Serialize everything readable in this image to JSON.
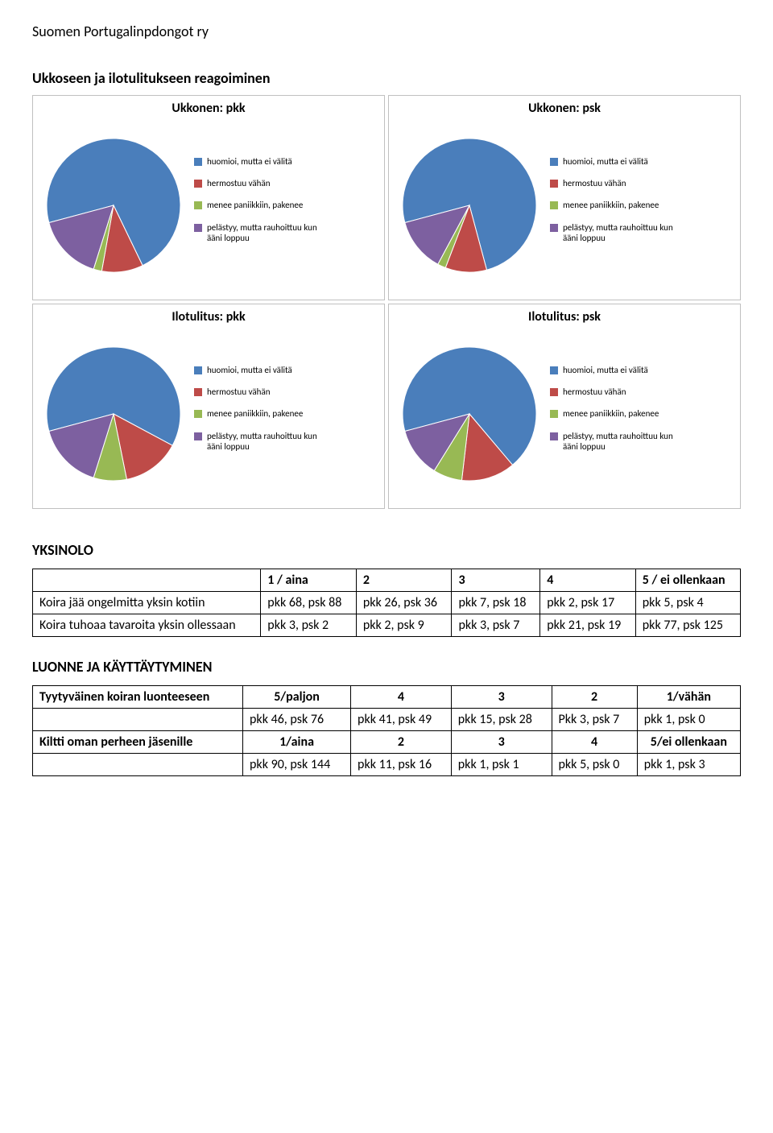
{
  "org_name": "Suomen Portugalinpdongot ry",
  "heading_main": "Ukkoseen ja ilotulitukseen reagoiminen",
  "legend_labels": [
    "huomioi, mutta ei välitä",
    "hermostuu vähän",
    "menee paniikkiin, pakenee",
    "pelästyy, mutta rauhoittuu kun ääni loppuu"
  ],
  "legend_colors": [
    "#4a7ebb",
    "#be4b48",
    "#98b954",
    "#7d60a0"
  ],
  "charts": [
    {
      "title": "Ukkonen: pkk",
      "values": [
        72,
        10,
        2,
        16
      ]
    },
    {
      "title": "Ukkonen: psk",
      "values": [
        75,
        10,
        2,
        13
      ]
    },
    {
      "title": "Ilotulitus: pkk",
      "values": [
        62,
        14,
        8,
        16
      ]
    },
    {
      "title": "Ilotulitus: psk",
      "values": [
        68,
        13,
        7,
        12
      ]
    }
  ],
  "pie_bg": "#ffffff",
  "chart_title_fontsize": 16,
  "legend_fontsize": 11,
  "yksinolo": {
    "heading": "YKSINOLO",
    "cols": [
      "1 / aina",
      "2",
      "3",
      "4",
      "5 / ei ollenkaan"
    ],
    "rows": [
      {
        "label": "Koira jää ongelmitta yksin kotiin",
        "cells": [
          "pkk 68, psk 88",
          "pkk 26, psk 36",
          "pkk 7, psk 18",
          "pkk 2, psk 17",
          "pkk 5, psk 4"
        ]
      },
      {
        "label": "Koira tuhoaa tavaroita yksin ollessaan",
        "cells": [
          "pkk 3, psk 2",
          "pkk 2, psk 9",
          "pkk 3, psk 7",
          "pkk 21, psk 19",
          "pkk 77, psk 125"
        ]
      }
    ]
  },
  "luonne": {
    "heading": "LUONNE JA KÄYTTÄYTYMINEN",
    "row1_label": "Tyytyväinen koiran luonteeseen",
    "row1_head": [
      "5/paljon",
      "4",
      "3",
      "2",
      "1/vähän"
    ],
    "row1_data": [
      "pkk 46, psk 76",
      "pkk 41, psk 49",
      "pkk 15, psk 28",
      "Pkk 3, psk 7",
      "pkk 1, psk 0"
    ],
    "row2_label": "Kiltti oman perheen jäsenille",
    "row2_head": [
      "1/aina",
      "2",
      "3",
      "4",
      "5/ei ollenkaan"
    ],
    "row2_data": [
      "pkk 90, psk 144",
      "pkk 11, psk 16",
      "pkk 1, psk 1",
      "pkk 5, psk 0",
      "pkk 1, psk 3"
    ]
  }
}
